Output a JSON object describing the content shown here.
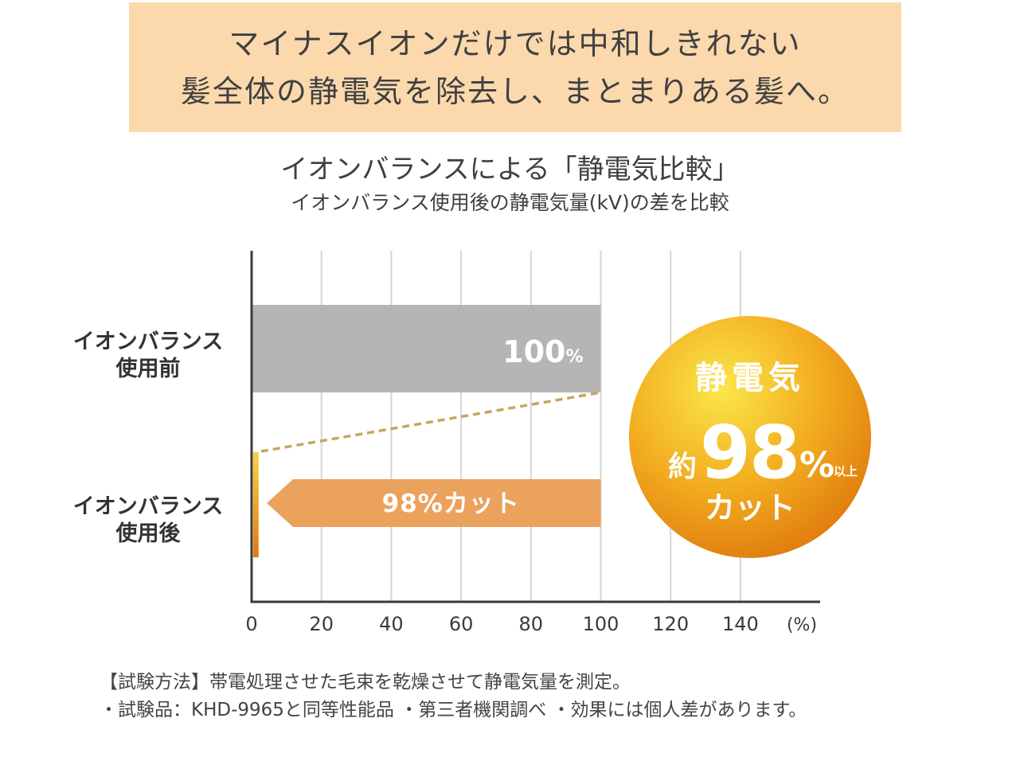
{
  "banner": {
    "line1": "マイナスイオンだけでは中和しきれない",
    "line2": "髪全体の静電気を除去し、まとまりある髪へ。"
  },
  "chart_data": {
    "type": "bar",
    "orientation": "horizontal",
    "title": "イオンバランスによる「静電気比較」",
    "subtitle": "イオンバランス使用後の静電気量(kV)の差を比較",
    "categories": [
      "イオンバランス使用前",
      "イオンバランス使用後"
    ],
    "category_lines": [
      [
        "イオンバランス",
        "使用前"
      ],
      [
        "イオンバランス",
        "使用後"
      ]
    ],
    "values": [
      100,
      2
    ],
    "value_labels": [
      "100%",
      ""
    ],
    "xlim": [
      0,
      150
    ],
    "xticks": [
      0,
      20,
      40,
      60,
      80,
      100,
      120,
      140
    ],
    "xunit": "(%)",
    "grid": true,
    "annotation_arrow": {
      "label": "98%カット",
      "from": 100,
      "to": 2
    },
    "colors": {
      "before": "#b5b5b6",
      "after_top": "#f6d43a",
      "after_bottom": "#e2780f",
      "arrow": "#eba25d"
    }
  },
  "badge": {
    "line1": "静電気",
    "prefix": "約",
    "number": "98",
    "percent": "%",
    "suffix": "以上",
    "line3": "カット"
  },
  "footnotes": {
    "line1": "【試験方法】帯電処理させた毛束を乾燥させて静電気量を測定。",
    "line2": "・試験品：KHD-9965と同等性能品 ・第三者機関調べ ・効果には個人差があります。"
  }
}
